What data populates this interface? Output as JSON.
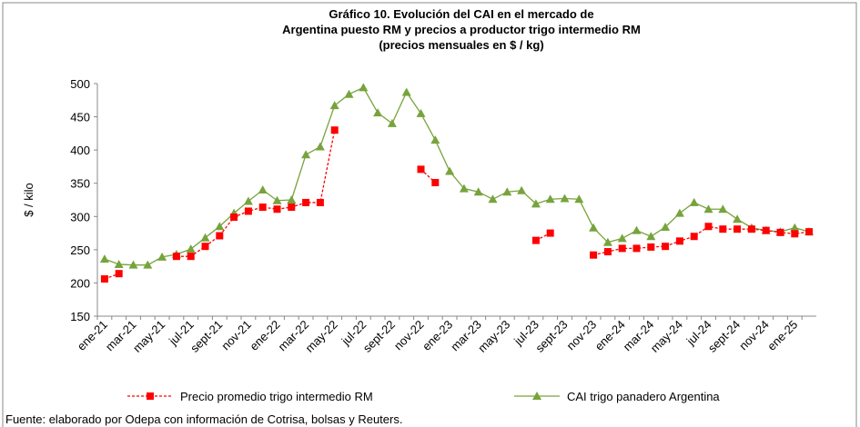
{
  "chart_data": {
    "type": "line",
    "title": [
      "Gráfico 10. Evolución del CAI en el mercado de",
      "Argentina puesto RM y precios a productor trigo intermedio RM",
      "(precios mensuales en $ / kg)"
    ],
    "ylabel": "$ / kilo",
    "source": "Fuente: elaborado por Odepa con información de Cotrisa, bolsas y Reuters.",
    "categories": [
      "ene-21",
      null,
      "mar-21",
      null,
      "may-21",
      null,
      "jul-21",
      null,
      "sept-21",
      null,
      "nov-21",
      null,
      "ene-22",
      null,
      "mar-22",
      null,
      "may-22",
      null,
      "jul-22",
      null,
      "sept-22",
      null,
      "nov-22",
      null,
      "ene-23",
      null,
      "mar-23",
      null,
      "may-23",
      null,
      "jul-23",
      null,
      "sept-23",
      null,
      "nov-23",
      null,
      "ene-24",
      null,
      "mar-24",
      null,
      "may-24",
      null,
      "jul-24",
      null,
      "sept-24",
      null,
      "nov-24",
      null,
      "ene-25",
      null
    ],
    "ylim": [
      150,
      500
    ],
    "yticks": [
      150,
      200,
      250,
      300,
      350,
      400,
      450,
      500
    ],
    "grid": false,
    "legend": "bottom",
    "series": [
      {
        "name": "Precio promedio trigo intermedio RM",
        "color": "#ff0000",
        "marker": "square",
        "dashed": true,
        "values": [
          206,
          214,
          null,
          null,
          null,
          240,
          240,
          255,
          271,
          299,
          308,
          314,
          311,
          314,
          321,
          321,
          430,
          null,
          null,
          null,
          null,
          null,
          371,
          351,
          null,
          null,
          null,
          null,
          null,
          null,
          264,
          275,
          null,
          null,
          242,
          247,
          252,
          252,
          254,
          255,
          263,
          270,
          285,
          281,
          281,
          281,
          279,
          276,
          274,
          277
        ]
      },
      {
        "name": "CAI trigo panadero Argentina",
        "color": "#77a33c",
        "marker": "triangle",
        "dashed": false,
        "values": [
          236,
          228,
          227,
          227,
          239,
          243,
          251,
          268,
          285,
          305,
          323,
          340,
          324,
          325,
          393,
          405,
          467,
          484,
          494,
          456,
          440,
          487,
          455,
          415,
          368,
          342,
          337,
          326,
          337,
          339,
          319,
          326,
          327,
          326,
          283,
          261,
          267,
          279,
          270,
          284,
          305,
          321,
          311,
          311,
          296,
          283,
          279,
          277,
          283,
          277
        ]
      }
    ]
  }
}
